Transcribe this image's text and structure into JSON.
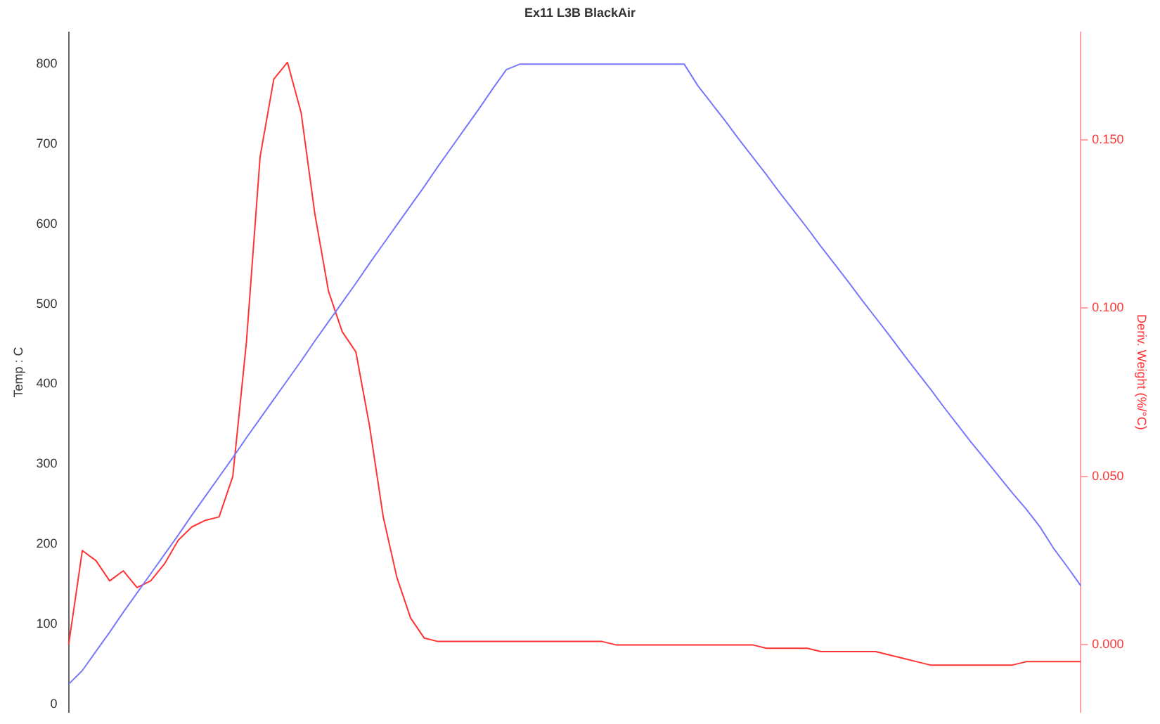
{
  "chart_data": {
    "type": "line",
    "title": "Ex11 L3B BlackAir",
    "ylabel": "Temp : C",
    "y2label": "Deriv. Weight (%/°C)",
    "categories": [
      null,
      null,
      null,
      null,
      null,
      null,
      null,
      null,
      null,
      null,
      null,
      null,
      null,
      null,
      null,
      null,
      null,
      null,
      null,
      null,
      null,
      null,
      null,
      null,
      null,
      null,
      null,
      null,
      null,
      null,
      null,
      null,
      null,
      null,
      null,
      null,
      null,
      null,
      null,
      null,
      null,
      null,
      null,
      null,
      null,
      null,
      null,
      null,
      null,
      null,
      null,
      null,
      null,
      null,
      null,
      null,
      null,
      null,
      null,
      null,
      null,
      null,
      null,
      null,
      null,
      null,
      null,
      null,
      null,
      null,
      null,
      null,
      null,
      null,
      null
    ],
    "series": [
      {
        "color": "#7777ff",
        "values": [
          25,
          42,
          66,
          90,
          115,
          139,
          163,
          187,
          211,
          236,
          260,
          284,
          308,
          333,
          357,
          381,
          405,
          429,
          454,
          478,
          502,
          526,
          551,
          575,
          599,
          623,
          647,
          672,
          696,
          720,
          744,
          769,
          793,
          800,
          800,
          800,
          800,
          800,
          800,
          800,
          800,
          800,
          800,
          800,
          800,
          800,
          773,
          751,
          729,
          706,
          684,
          662,
          639,
          617,
          595,
          572,
          550,
          528,
          505,
          483,
          461,
          438,
          416,
          394,
          371,
          349,
          327,
          306,
          285,
          264,
          244,
          222,
          195,
          172,
          148
        ]
      },
      {
        "color": "#ff3333",
        "axis": "y2",
        "values": [
          0.0,
          0.028,
          0.025,
          0.019,
          0.022,
          0.017,
          0.019,
          0.024,
          0.031,
          0.035,
          0.037,
          0.038,
          0.05,
          0.09,
          0.145,
          0.168,
          0.173,
          0.158,
          0.128,
          0.105,
          0.093,
          0.087,
          0.065,
          0.038,
          0.02,
          0.008,
          0.002,
          0.001,
          0.001,
          0.001,
          0.001,
          0.001,
          0.001,
          0.001,
          0.001,
          0.001,
          0.001,
          0.001,
          0.001,
          0.001,
          0.0,
          0.0,
          0.0,
          0.0,
          0.0,
          0.0,
          0.0,
          0.0,
          0.0,
          0.0,
          0.0,
          -0.001,
          -0.001,
          -0.001,
          -0.001,
          -0.002,
          -0.002,
          -0.002,
          -0.002,
          -0.002,
          -0.003,
          -0.004,
          -0.005,
          -0.006,
          -0.006,
          -0.006,
          -0.006,
          -0.006,
          -0.006,
          -0.006,
          -0.005,
          -0.005,
          -0.005,
          -0.005,
          -0.005
        ]
      }
    ],
    "ylim": [
      -10,
      840
    ],
    "yticks": [
      0,
      100,
      200,
      300,
      400,
      500,
      600,
      700,
      800
    ],
    "y2lim": [
      -0.02,
      0.182
    ],
    "y2ticks": [
      {
        "value": 0,
        "label": "0.000"
      },
      {
        "value": 0.05,
        "label": "0.050"
      },
      {
        "value": 0.1,
        "label": "0.100"
      },
      {
        "value": 0.15,
        "label": "0.150"
      }
    ],
    "grid": false,
    "legend": false,
    "tick_labels": "y",
    "marker": "none",
    "line_style": "solid"
  }
}
